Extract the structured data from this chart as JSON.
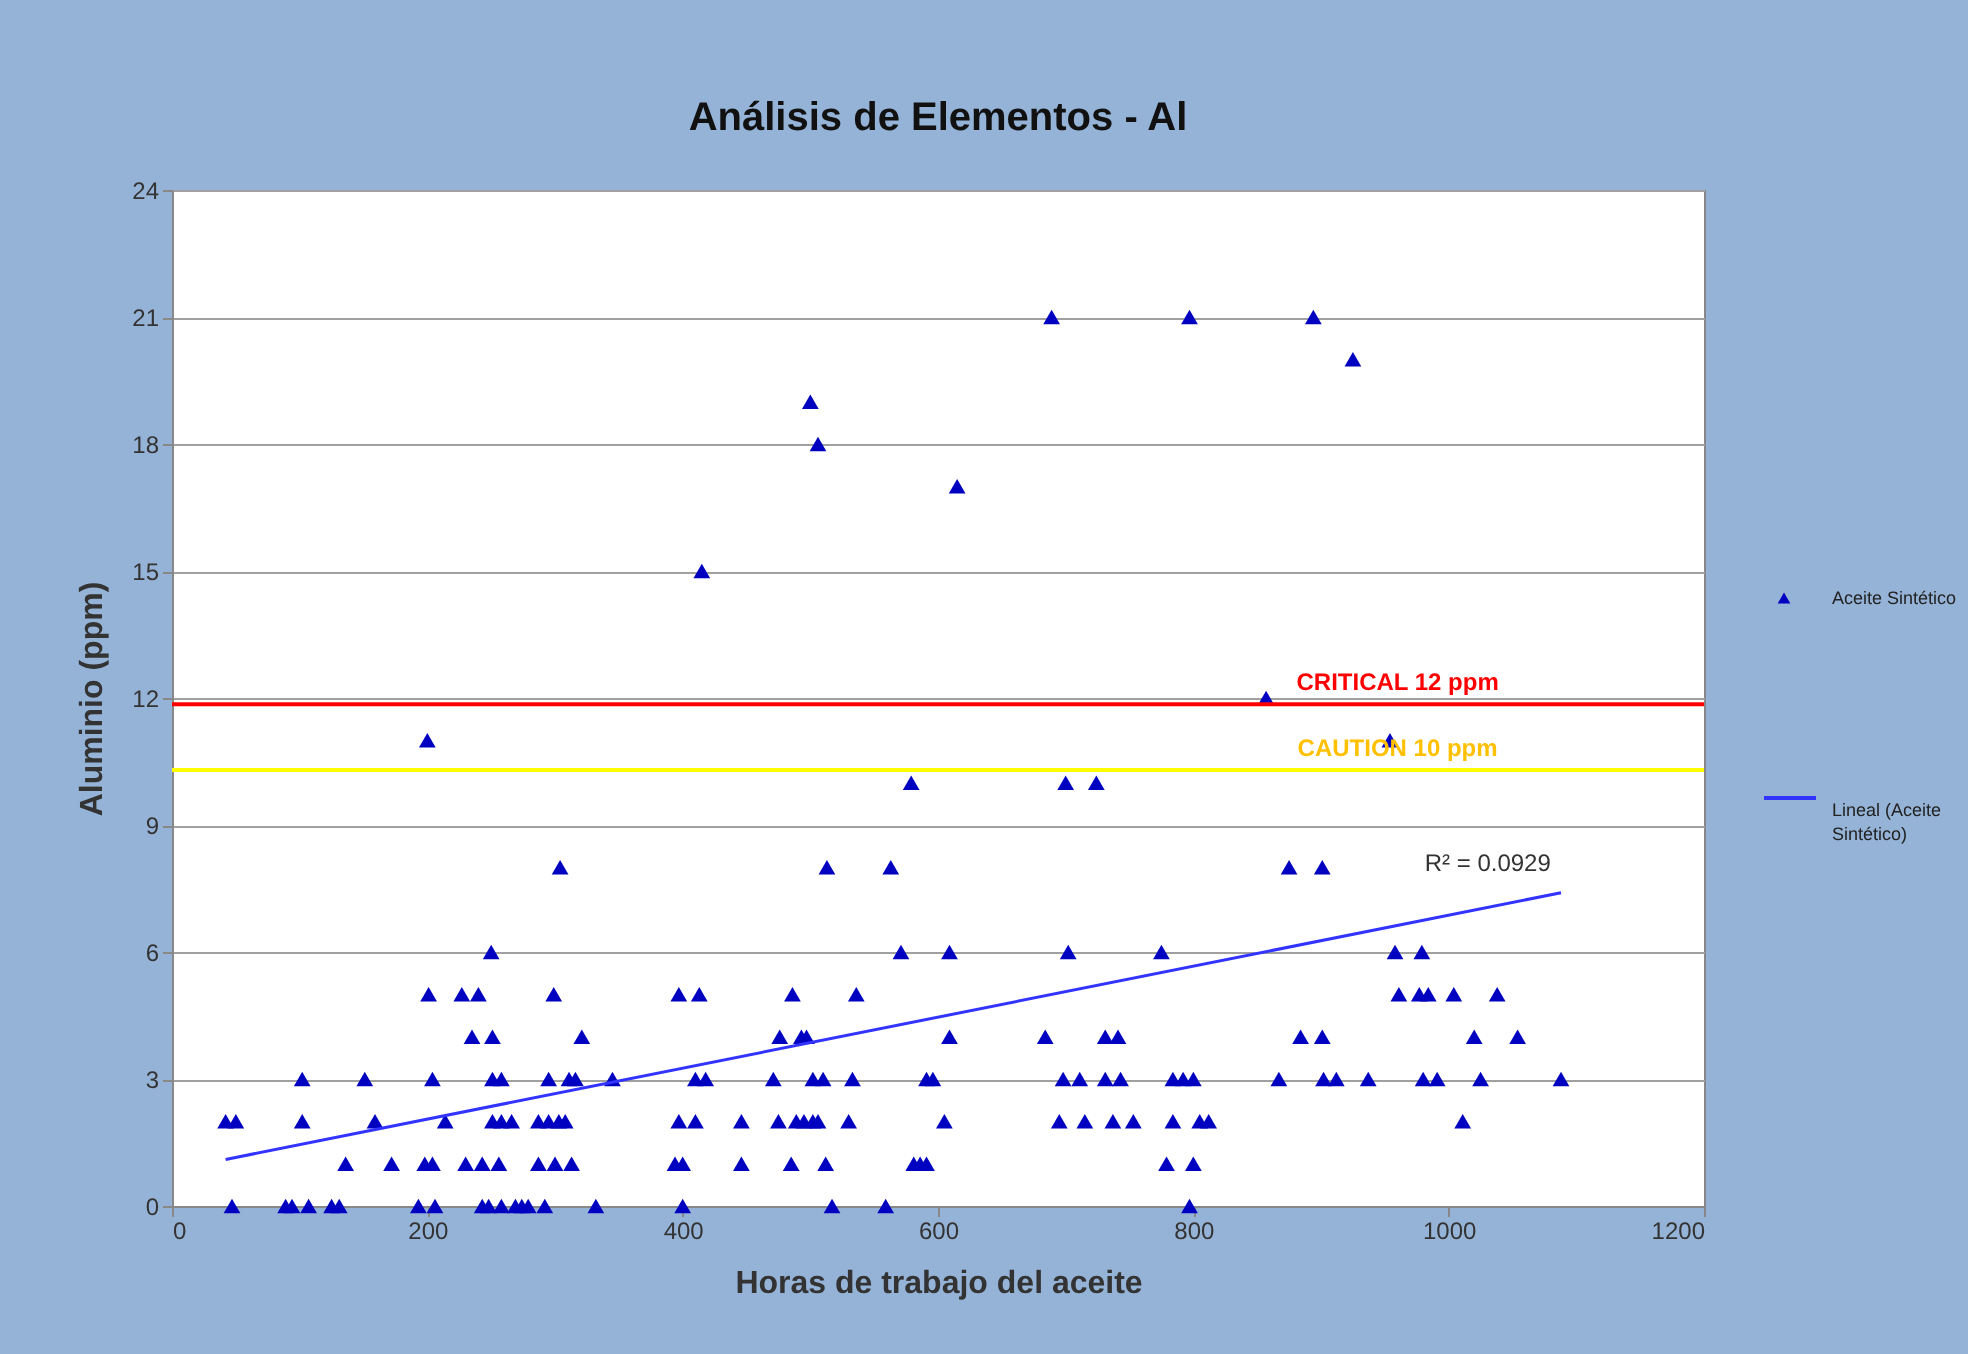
{
  "chart_data": {
    "type": "scatter",
    "title": "Análisis de Elementos - Al",
    "xlabel": "Horas de trabajo del aceite",
    "ylabel": "Aluminio (ppm)",
    "xlim": [
      0,
      1200
    ],
    "xticks": [
      0,
      200,
      400,
      600,
      800,
      1000,
      1200
    ],
    "ylim": [
      0,
      24
    ],
    "yticks": [
      0,
      3,
      6,
      9,
      12,
      15,
      18,
      21,
      24
    ],
    "grid": "y",
    "legend": "right",
    "series": [
      {
        "name": "Aceite Sintético",
        "marker": "triangle",
        "color": "#0000c0",
        "x": [
          47,
          89,
          94,
          107,
          125,
          131,
          193,
          206,
          243,
          248,
          258,
          269,
          274,
          279,
          292,
          332,
          400,
          517,
          559,
          797,
          136,
          172,
          198,
          204,
          230,
          243,
          256,
          287,
          300,
          313,
          394,
          400,
          446,
          485,
          512,
          581,
          586,
          591,
          779,
          800,
          42,
          50,
          102,
          159,
          214,
          251,
          258,
          266,
          287,
          295,
          303,
          308,
          397,
          410,
          446,
          475,
          489,
          495,
          502,
          506,
          530,
          605,
          695,
          715,
          737,
          753,
          784,
          805,
          812,
          1011,
          102,
          151,
          204,
          251,
          258,
          295,
          311,
          316,
          345,
          410,
          418,
          471,
          502,
          510,
          533,
          591,
          596,
          698,
          711,
          731,
          743,
          784,
          792,
          800,
          867,
          902,
          912,
          937,
          980,
          991,
          1025,
          1088,
          235,
          251,
          321,
          476,
          493,
          497,
          609,
          684,
          731,
          741,
          884,
          901,
          1020,
          1054,
          201,
          227,
          240,
          299,
          397,
          413,
          486,
          536,
          961,
          977,
          984,
          1004,
          1038,
          250,
          571,
          609,
          702,
          775,
          958,
          979,
          304,
          513,
          563,
          875,
          901,
          579,
          700,
          724,
          200,
          954,
          857,
          415,
          615,
          506,
          500,
          925,
          689,
          797,
          894
        ],
        "values": [
          0,
          0,
          0,
          0,
          0,
          0,
          0,
          0,
          0,
          0,
          0,
          0,
          0,
          0,
          0,
          0,
          0,
          0,
          0,
          0,
          1,
          1,
          1,
          1,
          1,
          1,
          1,
          1,
          1,
          1,
          1,
          1,
          1,
          1,
          1,
          1,
          1,
          1,
          1,
          1,
          2,
          2,
          2,
          2,
          2,
          2,
          2,
          2,
          2,
          2,
          2,
          2,
          2,
          2,
          2,
          2,
          2,
          2,
          2,
          2,
          2,
          2,
          2,
          2,
          2,
          2,
          2,
          2,
          2,
          2,
          3,
          3,
          3,
          3,
          3,
          3,
          3,
          3,
          3,
          3,
          3,
          3,
          3,
          3,
          3,
          3,
          3,
          3,
          3,
          3,
          3,
          3,
          3,
          3,
          3,
          3,
          3,
          3,
          3,
          3,
          3,
          3,
          4,
          4,
          4,
          4,
          4,
          4,
          4,
          4,
          4,
          4,
          4,
          4,
          4,
          4,
          5,
          5,
          5,
          5,
          5,
          5,
          5,
          5,
          5,
          5,
          5,
          5,
          5,
          6,
          6,
          6,
          6,
          6,
          6,
          6,
          8,
          8,
          8,
          8,
          8,
          10,
          10,
          10,
          11,
          11,
          12,
          15,
          17,
          18,
          19,
          20,
          21,
          21,
          21
        ]
      },
      {
        "name": "Lineal (Aceite Sintético)",
        "type": "line",
        "color": "#3333ff",
        "x": [
          42,
          1088
        ],
        "values": [
          1.1,
          7.4
        ]
      }
    ],
    "ref_lines": [
      {
        "axis": "y",
        "value": 11.85,
        "label": "CRITICAL  12 ppm",
        "color": "#ff0000"
      },
      {
        "axis": "y",
        "value": 10.3,
        "label": "CAUTION  10 ppm",
        "color": "#ffff00"
      }
    ],
    "annotations": [
      "R² = 0.0929"
    ]
  }
}
